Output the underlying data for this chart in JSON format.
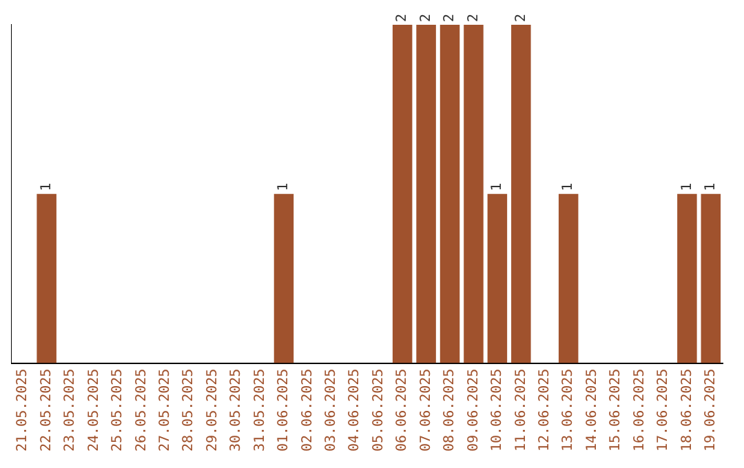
{
  "chart_data": {
    "type": "bar",
    "categories": [
      "21.05.2025",
      "22.05.2025",
      "23.05.2025",
      "24.05.2025",
      "25.05.2025",
      "26.05.2025",
      "27.05.2025",
      "28.05.2025",
      "29.05.2025",
      "30.05.2025",
      "31.05.2025",
      "01.06.2025",
      "02.06.2025",
      "03.06.2025",
      "04.06.2025",
      "05.06.2025",
      "06.06.2025",
      "07.06.2025",
      "08.06.2025",
      "09.06.2025",
      "10.06.2025",
      "11.06.2025",
      "12.06.2025",
      "13.06.2025",
      "14.06.2025",
      "15.06.2025",
      "16.06.2025",
      "17.06.2025",
      "18.06.2025",
      "19.06.2025"
    ],
    "values": [
      0,
      1,
      0,
      0,
      0,
      0,
      0,
      0,
      0,
      0,
      0,
      1,
      0,
      0,
      0,
      0,
      2,
      2,
      2,
      2,
      1,
      2,
      0,
      1,
      0,
      0,
      0,
      0,
      1,
      1
    ],
    "value_labels": [
      null,
      "1",
      null,
      null,
      null,
      null,
      null,
      null,
      null,
      null,
      null,
      "1",
      null,
      null,
      null,
      null,
      "2",
      "2",
      "2",
      "2",
      "1",
      "2",
      null,
      "1",
      null,
      null,
      null,
      null,
      "1",
      "1"
    ],
    "color": "#a0522d",
    "grid": false,
    "legend": false,
    "tick_labels": "x"
  }
}
